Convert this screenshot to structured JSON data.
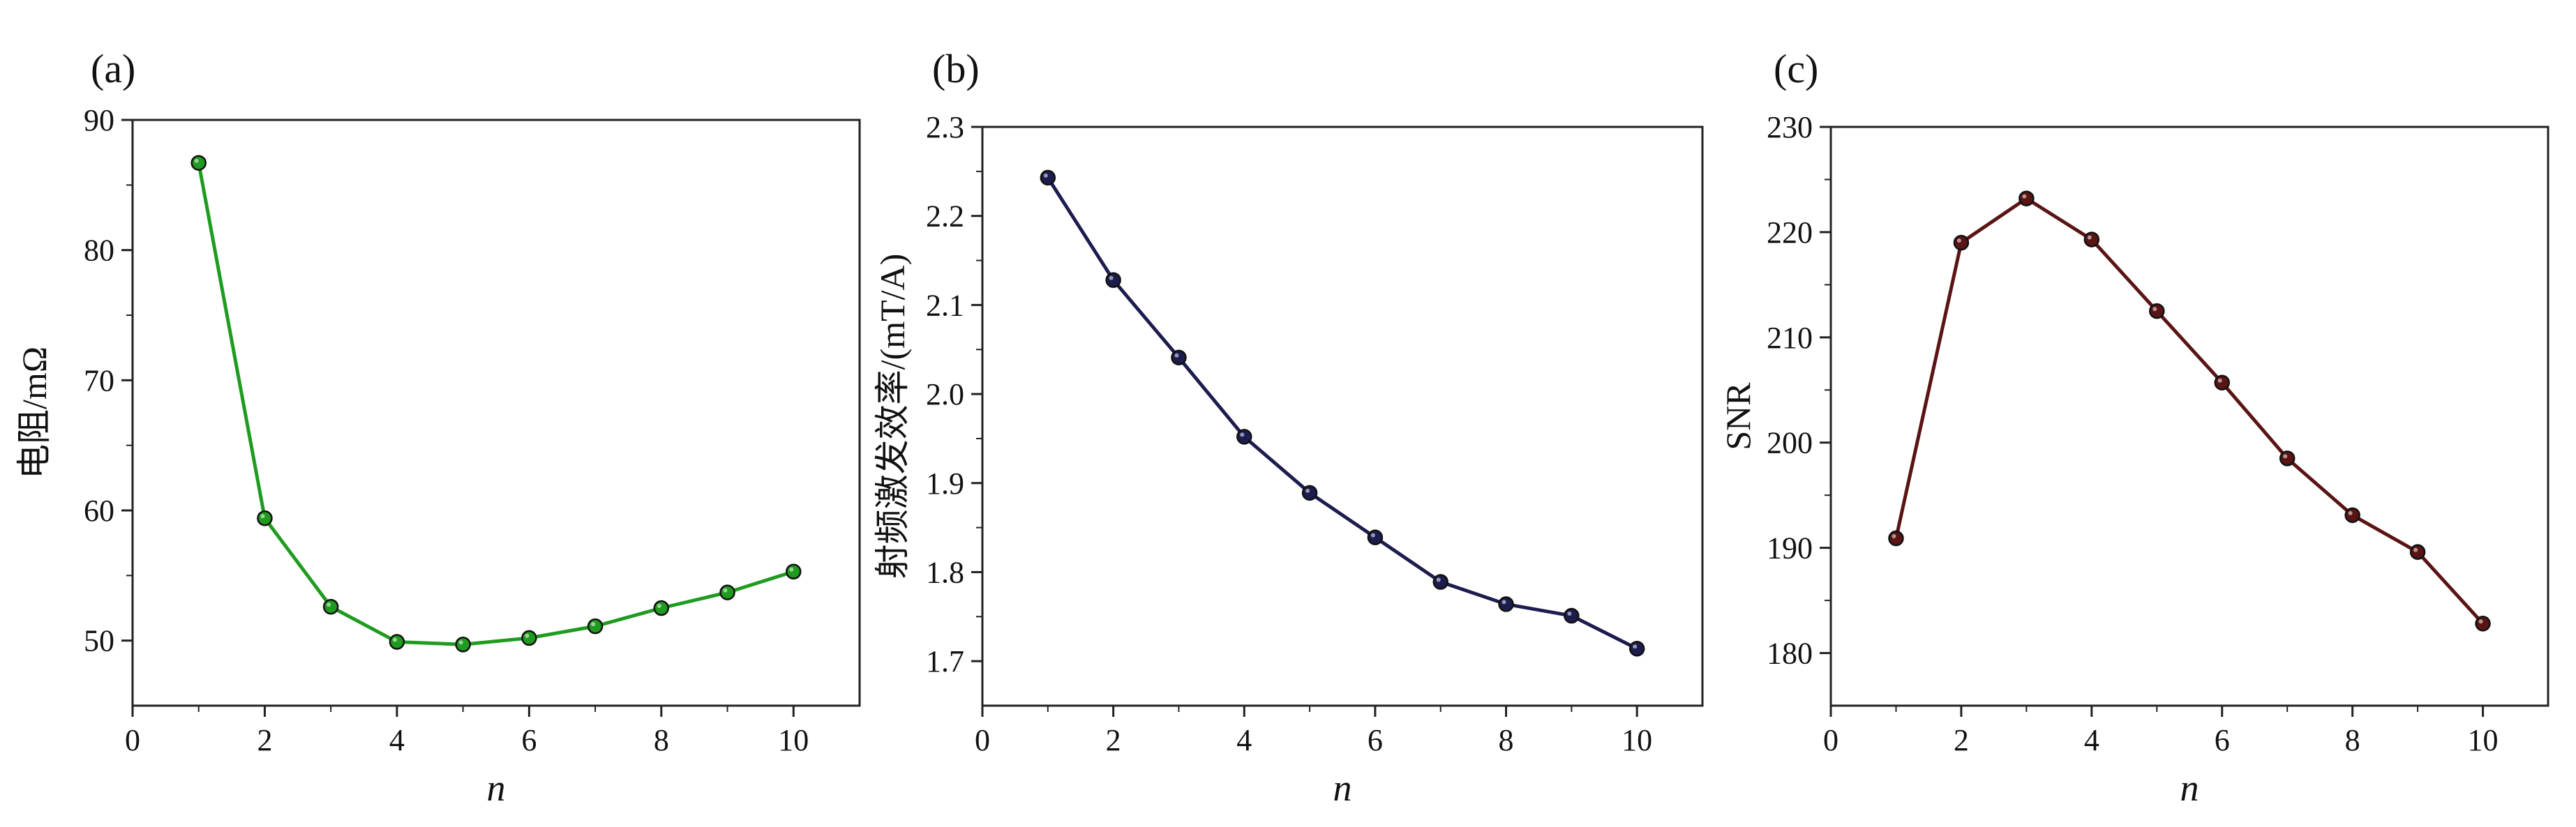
{
  "chart_data": [
    {
      "panel_label": "(a)",
      "type": "line",
      "xlabel": "n",
      "ylabel": "电阻/mΩ",
      "x": [
        1,
        2,
        3,
        4,
        5,
        6,
        7,
        8,
        9,
        10
      ],
      "series": [
        {
          "values": [
            86.7,
            59.4,
            52.6,
            49.9,
            49.7,
            50.2,
            51.1,
            52.5,
            53.7,
            55.3
          ],
          "color": "#1f9b1f"
        }
      ],
      "xlim": [
        0,
        11
      ],
      "ylim": [
        45,
        90
      ],
      "xticks": [
        0,
        2,
        4,
        6,
        8,
        10
      ],
      "yticks": [
        50,
        60,
        70,
        80,
        90
      ],
      "tick_labels_x": [
        "0",
        "2",
        "4",
        "6",
        "8",
        "10"
      ],
      "tick_labels_y": [
        "50",
        "60",
        "70",
        "80",
        "90"
      ],
      "grid": false,
      "legend": "none"
    },
    {
      "panel_label": "(b)",
      "type": "line",
      "xlabel": "n",
      "ylabel": "射频激发效率/(mT/A)",
      "x": [
        1,
        2,
        3,
        4,
        5,
        6,
        7,
        8,
        9,
        10
      ],
      "series": [
        {
          "values": [
            2.243,
            2.128,
            2.041,
            1.952,
            1.889,
            1.839,
            1.789,
            1.764,
            1.751,
            1.714
          ],
          "color": "#1c1c4e"
        }
      ],
      "xlim": [
        0,
        11
      ],
      "ylim": [
        1.65,
        2.3
      ],
      "xticks": [
        0,
        2,
        4,
        6,
        8,
        10
      ],
      "yticks": [
        1.7,
        1.8,
        1.9,
        2.0,
        2.1,
        2.2,
        2.3
      ],
      "tick_labels_x": [
        "0",
        "2",
        "4",
        "6",
        "8",
        "10"
      ],
      "tick_labels_y": [
        "1.7",
        "1.8",
        "1.9",
        "2.0",
        "2.1",
        "2.2",
        "2.3"
      ],
      "grid": false,
      "legend": "none"
    },
    {
      "panel_label": "(c)",
      "type": "line",
      "xlabel": "n",
      "ylabel": "SNR",
      "x": [
        1,
        2,
        3,
        4,
        5,
        6,
        7,
        8,
        9,
        10
      ],
      "series": [
        {
          "values": [
            190.9,
            219.0,
            223.2,
            219.3,
            212.5,
            205.7,
            198.5,
            193.1,
            189.6,
            182.8
          ],
          "color": "#5a1414"
        }
      ],
      "xlim": [
        0,
        11
      ],
      "ylim": [
        175,
        230
      ],
      "xticks": [
        0,
        2,
        4,
        6,
        8,
        10
      ],
      "yticks": [
        180,
        190,
        200,
        210,
        220,
        230
      ],
      "tick_labels_x": [
        "0",
        "2",
        "4",
        "6",
        "8",
        "10"
      ],
      "tick_labels_y": [
        "180",
        "190",
        "200",
        "210",
        "220",
        "230"
      ],
      "grid": false,
      "legend": "none"
    }
  ]
}
